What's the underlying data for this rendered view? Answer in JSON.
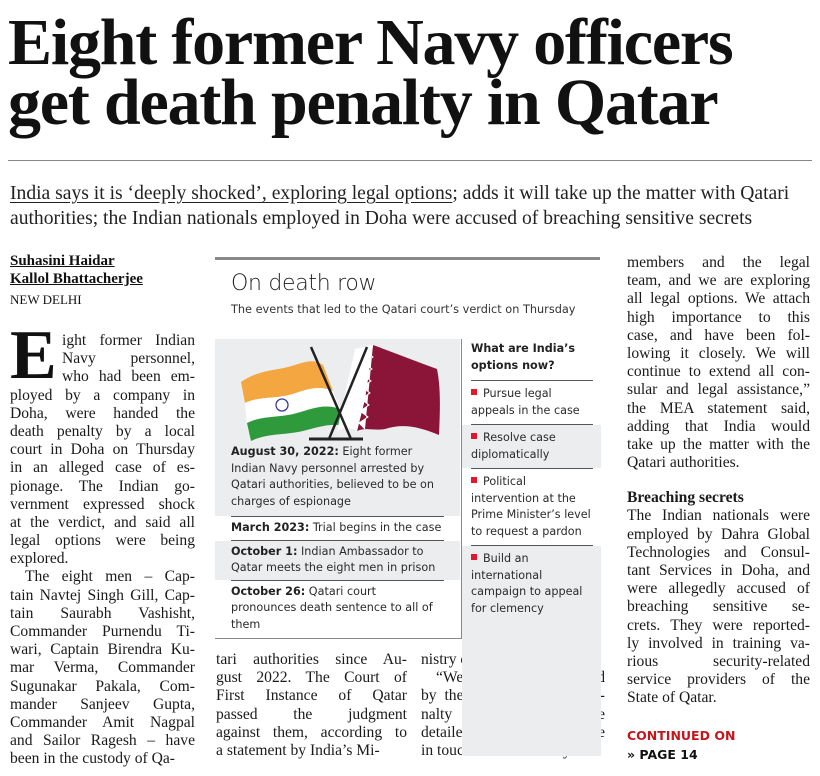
{
  "headline": {
    "line1": "Eight former Navy officers",
    "line2": "get death penalty in Qatar"
  },
  "deck": {
    "underlined": "India says it is ‘deeply shocked’, exploring legal options",
    "rest": "; adds it will take up the matter with Qatari authorities; the Indian nationals employed in Doha were accused of breaching sensitive secrets"
  },
  "byline": {
    "authors": [
      "Suhasini Haidar",
      "Kallol Bhattacherjee"
    ],
    "dateline": "NEW DELHI"
  },
  "dropcap": "E",
  "columns": [
    {
      "paragraphs": [
        [
          "ight former Indian",
          "Navy personnel,",
          "who had been em-",
          "ployed by a company in",
          "Doha, were handed the",
          "death penalty by a local",
          "court in Doha on Thursday",
          "in an alleged case of es-",
          "pionage. The Indian go-",
          "vernment expressed shock",
          "at the verdict, and said all",
          "legal options were being",
          "explored."
        ],
        [
          "The eight men – Cap-",
          "tain Navtej Singh Gill, Cap-",
          "tain Saurabh Vashisht,",
          "Commander Purnendu Ti-",
          "wari, Captain Birendra Ku-",
          "mar Verma, Commander",
          "Sugunakar Pakala, Com-",
          "mander Sanjeev Gupta,",
          "Commander Amit Nagpal",
          "and Sailor Ragesh – have",
          "been in the custody of Qa-"
        ]
      ]
    },
    {
      "paragraphs": [
        [
          "tari authorities since Au-",
          "gust 2022. The Court of",
          "First Instance of Qatar",
          "passed the judgment",
          "against them, according to",
          "a statement by India’s Mi-"
        ]
      ]
    },
    {
      "paragraphs": [
        [
          "nistry of External Affairs."
        ],
        [
          "“We are deeply shocked",
          "by the verdict of death pe-",
          "nalty and are awaiting the",
          "detailed judgment. We are",
          "in touch with the family"
        ]
      ]
    },
    {
      "paragraphs": [
        [
          "members and the legal",
          "team, and we are exploring",
          "all legal options. We attach",
          "high importance to this",
          "case, and have been fol-",
          "lowing it closely. We will",
          "continue to extend all con-",
          "sular and legal assistance,”",
          "the MEA statement said,",
          "adding that India would",
          "take up the matter with the",
          "Qatari authorities."
        ]
      ],
      "subhead": "Breaching secrets",
      "paragraphs2": [
        [
          "The Indian nationals were",
          "employed by Dahra Global",
          "Technologies and Consul-",
          "tant Services in Doha, and",
          "were allegedly accused of",
          "breaching sensitive se-",
          "crets. They were reported-",
          "ly involved in training va-",
          "rious security-related",
          "service providers of the",
          "State of Qatar."
        ]
      ]
    }
  ],
  "continued": {
    "label": "CONTINUED ON",
    "page": "» PAGE 14"
  },
  "infobox": {
    "title": "On death row",
    "subtitle": "The events that led to the Qatari court’s verdict on Thursday",
    "timeline": [
      {
        "date": "August 30, 2022:",
        "text": " Eight former Indian Navy personnel arrested by Qatari authorities, believed to be on charges of espionage"
      },
      {
        "date": "March 2023:",
        "text": " Trial begins in the case"
      },
      {
        "date": "October 1:",
        "text": " Indian Ambassador to Qatar meets the eight men in prison"
      },
      {
        "date": "October 26:",
        "text": " Qatari court pronounces death sentence to all of them"
      }
    ],
    "options_title": "What are India’s options now?",
    "options": [
      "Pursue legal appeals in the case",
      "Resolve case diplomatically",
      "Political intervention at the Prime Minister’s level to request a pardon",
      "Build an international campaign to appeal for clemency"
    ],
    "colors": {
      "bullet": "#e0182d",
      "saffron": "#f4a641",
      "green": "#2e9a3c",
      "maroon": "#8a1538",
      "panel": "#ecedef"
    }
  },
  "colors": {
    "continued": "#c4161c"
  }
}
